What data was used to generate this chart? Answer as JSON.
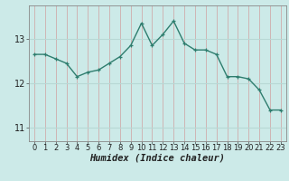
{
  "x": [
    0,
    1,
    2,
    3,
    4,
    5,
    6,
    7,
    8,
    9,
    10,
    11,
    12,
    13,
    14,
    15,
    16,
    17,
    18,
    19,
    20,
    21,
    22,
    23
  ],
  "y": [
    12.65,
    12.65,
    12.55,
    12.45,
    12.15,
    12.25,
    12.3,
    12.45,
    12.6,
    12.85,
    13.35,
    12.85,
    13.1,
    13.4,
    12.9,
    12.75,
    12.75,
    12.65,
    12.15,
    12.15,
    12.1,
    11.85,
    11.4,
    11.4
  ],
  "line_color": "#2e7d6e",
  "marker": "+",
  "bg_color": "#cceae8",
  "grid_color_x": "#d0a0a0",
  "grid_color_y": "#b8d8d5",
  "xlabel": "Humidex (Indice chaleur)",
  "xlabel_fontsize": 7.5,
  "ytick_labels": [
    "11",
    "12",
    "13"
  ],
  "ytick_positions": [
    11,
    12,
    13
  ],
  "ylim": [
    10.7,
    13.75
  ],
  "xlim": [
    -0.5,
    23.5
  ],
  "tick_fontsize": 6.0
}
